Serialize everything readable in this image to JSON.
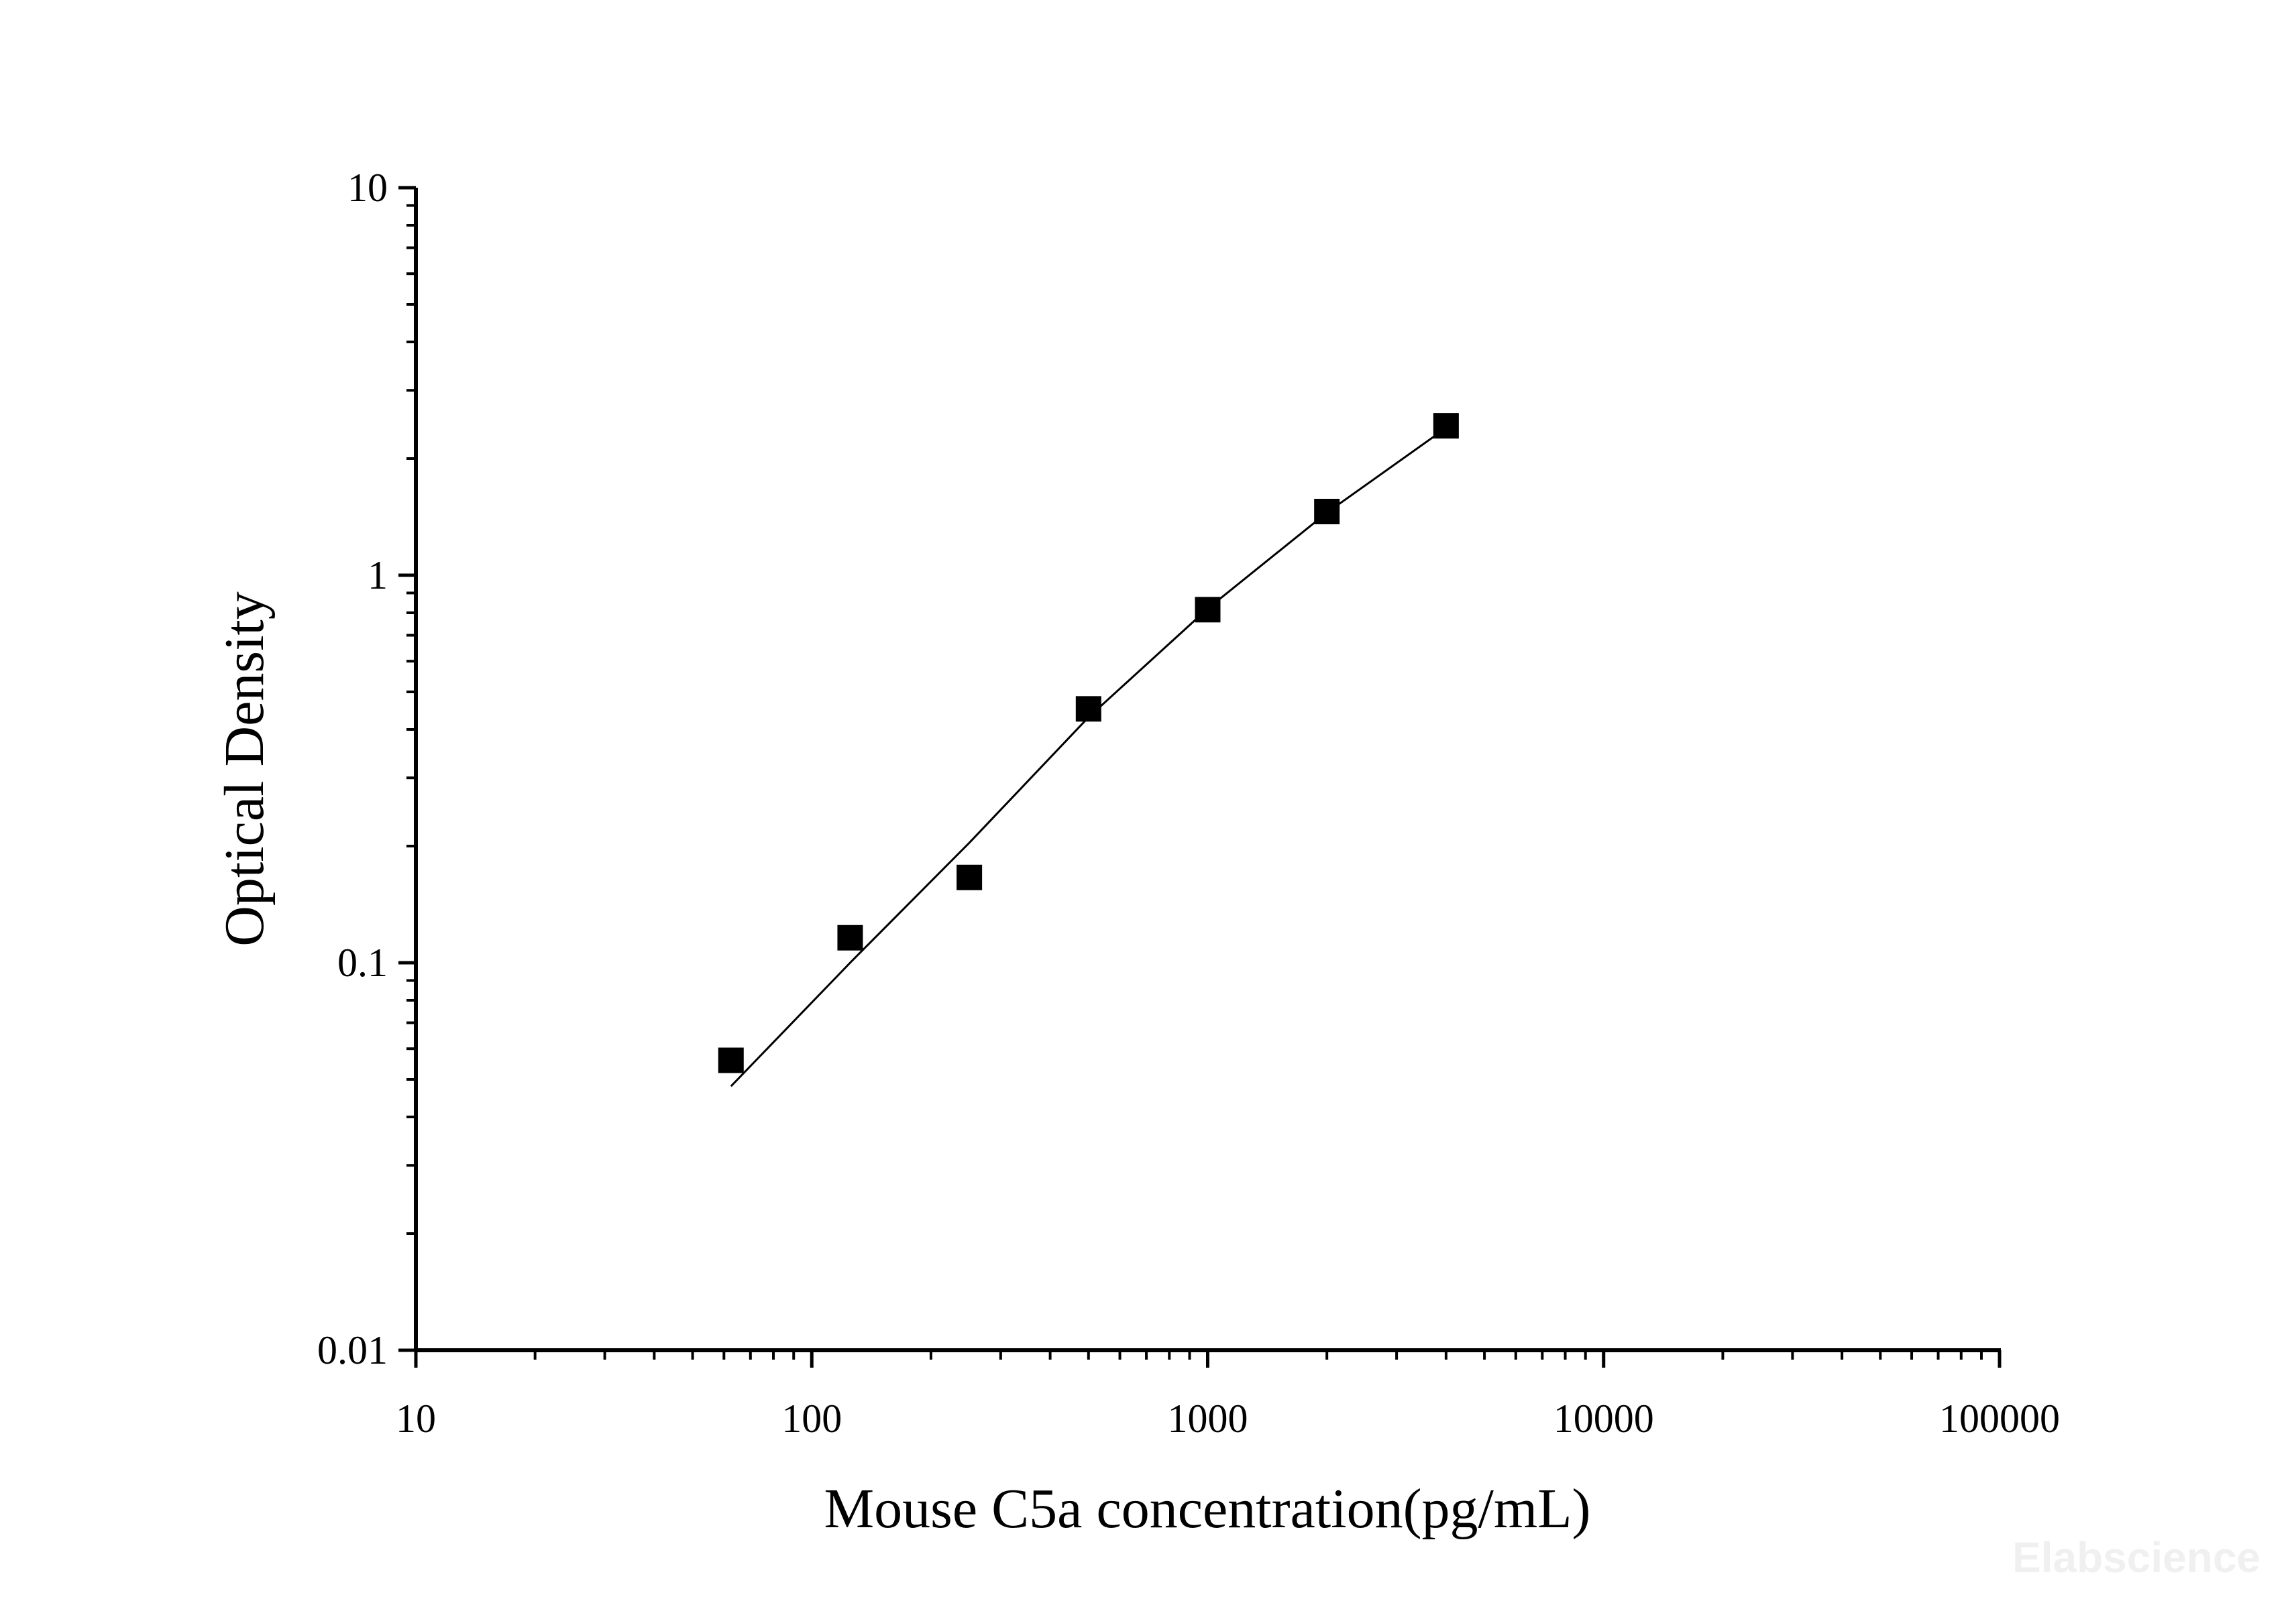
{
  "chart_data": {
    "type": "scatter",
    "xlabel": "Mouse C5a concentration(pg/mL)",
    "ylabel": "Optical Density",
    "x_scale": "log",
    "y_scale": "log",
    "xlim": [
      10,
      100000
    ],
    "ylim": [
      0.01,
      10
    ],
    "x_ticks": [
      "10",
      "100",
      "1000",
      "10000",
      "100000"
    ],
    "y_ticks": [
      "0.01",
      "0.1",
      "1",
      "10"
    ],
    "grid": false,
    "legend": "none",
    "series": [
      {
        "marker": "square",
        "color": "#000000",
        "x": [
          62.5,
          125,
          250,
          500,
          1000,
          2000,
          4000
        ],
        "y": [
          0.056,
          0.116,
          0.166,
          0.452,
          0.815,
          1.46,
          2.43
        ]
      }
    ],
    "fit_curve": {
      "color": "#000000",
      "x": [
        62.5,
        125,
        250,
        500,
        1000,
        2000,
        4000
      ],
      "y": [
        0.048,
        0.1,
        0.204,
        0.43,
        0.82,
        1.45,
        2.4
      ]
    }
  },
  "watermark": "Elabscience"
}
